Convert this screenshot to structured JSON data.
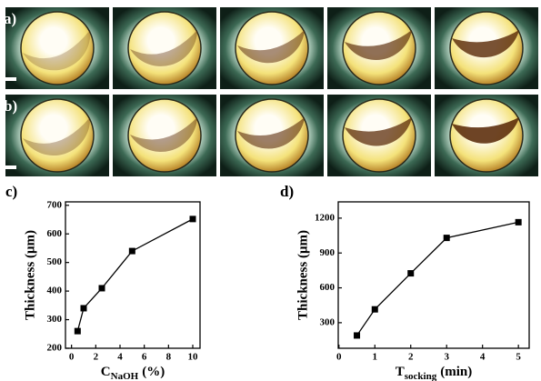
{
  "panel_labels": [
    "a)",
    "b)",
    "c)",
    "d)"
  ],
  "chart_data": [
    {
      "type": "line",
      "panel": "c)",
      "x_label": {
        "text": "C",
        "subscript": "NaOH",
        "suffix": "(%)"
      },
      "y_label": "Thickness (μm)",
      "x": [
        0.5,
        1,
        2.5,
        5,
        10
      ],
      "series": [
        {
          "name": "Thickness",
          "color": "#000000",
          "values": [
            260,
            340,
            410,
            540,
            652
          ]
        }
      ],
      "xlim": [
        -0.5,
        10.6
      ],
      "xticks": [
        0,
        2,
        4,
        6,
        8,
        10
      ],
      "ylim": [
        200,
        712
      ],
      "yticks": [
        200,
        300,
        400,
        500,
        600,
        700
      ]
    },
    {
      "type": "line",
      "panel": "d)",
      "x_label": {
        "text": "T",
        "subscript": "socking",
        "suffix": "(min)"
      },
      "y_label": "Thickness (μm)",
      "x": [
        0.5,
        1,
        2,
        3,
        5
      ],
      "series": [
        {
          "name": "Thickness",
          "color": "#000000",
          "values": [
            190,
            415,
            725,
            1030,
            1165
          ]
        }
      ],
      "xlim": [
        -0.02,
        5.3
      ],
      "xticks": [
        0,
        1,
        2,
        3,
        4,
        5
      ],
      "ylim": [
        80,
        1340
      ],
      "yticks": [
        300,
        600,
        900,
        1200
      ]
    }
  ]
}
